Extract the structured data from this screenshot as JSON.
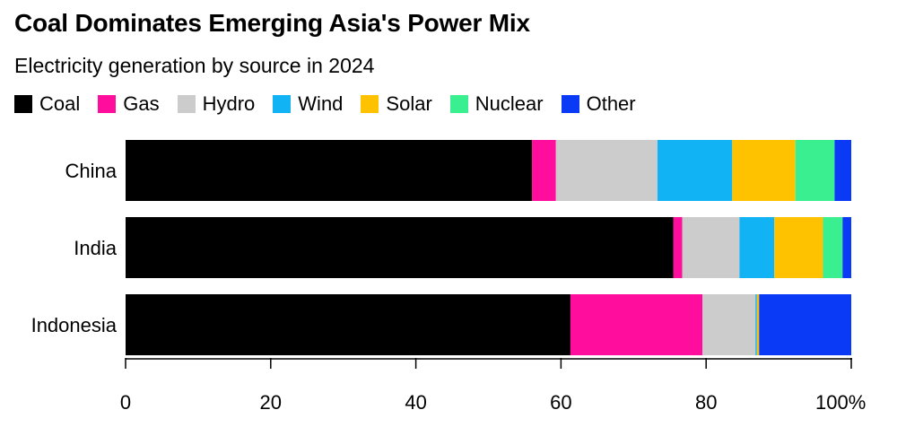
{
  "title": "Coal Dominates Emerging Asia's Power Mix",
  "subtitle": "Electricity generation by source in 2024",
  "chart_data": {
    "type": "bar",
    "orientation": "horizontal",
    "stacked": true,
    "title": "Coal Dominates Emerging Asia's Power Mix",
    "subtitle": "Electricity generation by source in 2024",
    "categories": [
      "China",
      "India",
      "Indonesia"
    ],
    "series": [
      {
        "name": "Coal",
        "color": "#000000",
        "values": [
          56.0,
          75.5,
          61.3
        ]
      },
      {
        "name": "Gas",
        "color": "#ff0d9c",
        "values": [
          3.3,
          1.2,
          18.2
        ]
      },
      {
        "name": "Hydro",
        "color": "#cccccc",
        "values": [
          14.0,
          7.9,
          7.3
        ]
      },
      {
        "name": "Wind",
        "color": "#12b3f5",
        "values": [
          10.3,
          4.8,
          0.2
        ]
      },
      {
        "name": "Solar",
        "color": "#ffc200",
        "values": [
          8.7,
          6.7,
          0.3
        ]
      },
      {
        "name": "Nuclear",
        "color": "#3aef8f",
        "values": [
          5.4,
          2.7,
          0.0
        ]
      },
      {
        "name": "Other",
        "color": "#0a3af5",
        "values": [
          2.3,
          1.2,
          12.7
        ]
      }
    ],
    "xlim": [
      0,
      100
    ],
    "xticks": [
      0,
      20,
      40,
      60,
      80,
      100
    ],
    "xtick_labels": [
      "0",
      "20",
      "40",
      "60",
      "80",
      "100%"
    ],
    "legend_position": "top-left",
    "grid": false
  }
}
